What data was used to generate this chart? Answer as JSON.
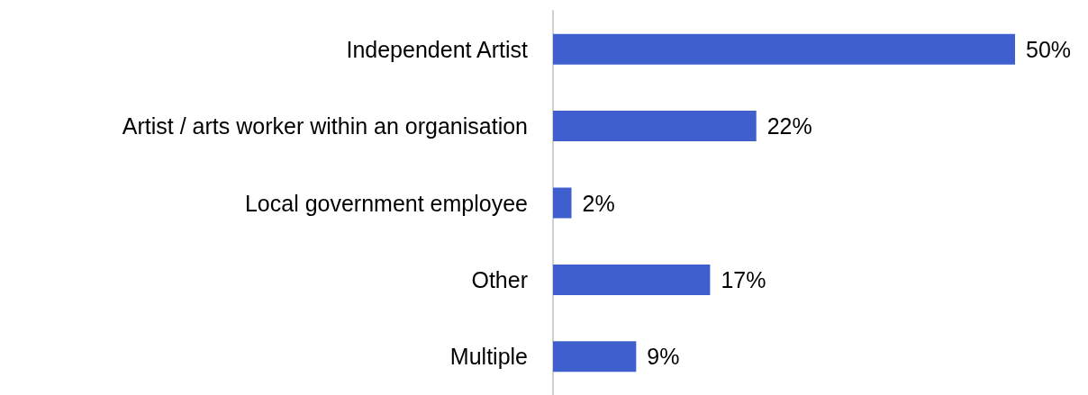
{
  "chart_data": {
    "type": "bar",
    "orientation": "horizontal",
    "categories": [
      "Independent Artist",
      "Artist / arts worker within an organisation",
      "Local government employee",
      "Other",
      "Multiple"
    ],
    "values": [
      50,
      22,
      2,
      17,
      9
    ],
    "value_labels": [
      "50%",
      "22%",
      "2%",
      "17%",
      "9%"
    ],
    "color": "#3e5fcd"
  }
}
